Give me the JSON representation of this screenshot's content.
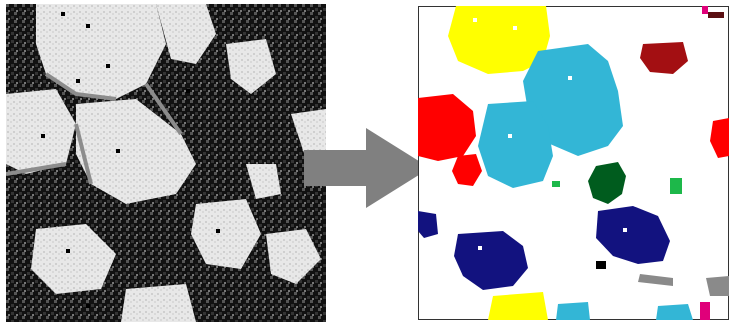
{
  "figure": {
    "left_panel": "grayscale-input-image",
    "right_panel": "segmented-clusters-image",
    "arrow_icon": "right-arrow-icon"
  },
  "colors": {
    "background": "#ffffff",
    "dark": "#000000",
    "light": "#f2f2f2",
    "mid_gray": "#8c8c8c",
    "arrow": "#808080",
    "yellow": "#ffff00",
    "cyan": "#33b6d6",
    "dark_red": "#a30f12",
    "red": "#ff0000",
    "dark_green": "#005c1e",
    "green": "#1db84a",
    "navy": "#12127f",
    "magenta": "#e0007a",
    "gray": "#8a8a8a",
    "black": "#000000"
  }
}
